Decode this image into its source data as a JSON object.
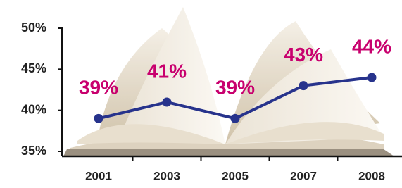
{
  "chart_data": {
    "type": "line",
    "categories": [
      "2001",
      "2003",
      "2005",
      "2007",
      "2008"
    ],
    "series": [
      {
        "color": "#27338c",
        "values": [
          39,
          41,
          39,
          43,
          44
        ],
        "value_labels": [
          "39%",
          "41%",
          "39%",
          "43%",
          "44%"
        ]
      }
    ],
    "ylim": [
      35,
      50
    ],
    "yticks": [
      {
        "value": 35,
        "label": "35%"
      },
      {
        "value": 40,
        "label": "40%"
      },
      {
        "value": 45,
        "label": "45%"
      },
      {
        "value": 50,
        "label": "50%"
      }
    ],
    "grid": false
  }
}
